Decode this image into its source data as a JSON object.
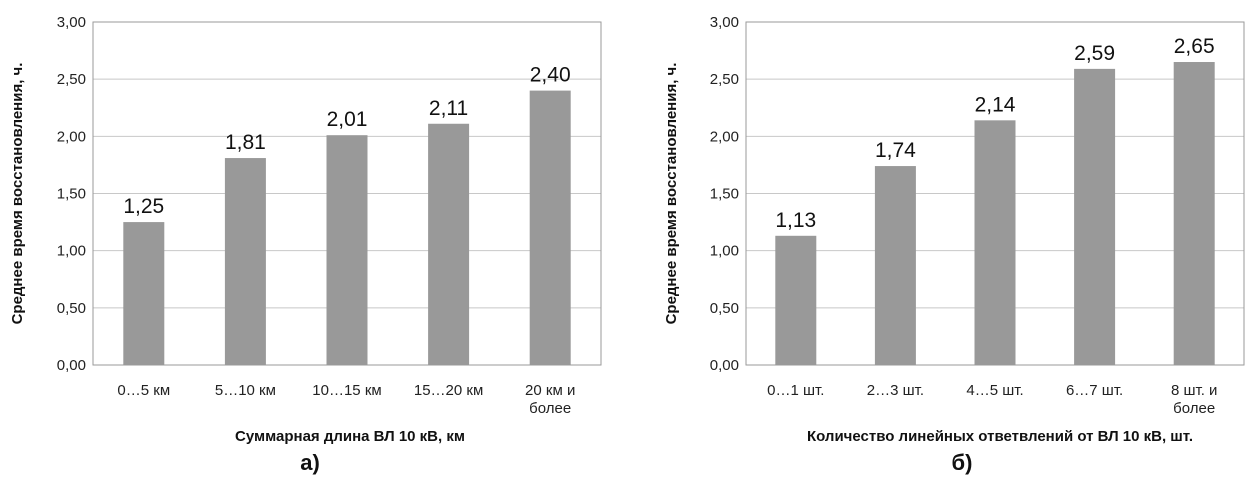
{
  "chart_data": [
    {
      "type": "bar",
      "panel_label": "а)",
      "categories": [
        [
          "0…5 км"
        ],
        [
          "5…10 км"
        ],
        [
          "10…15 км"
        ],
        [
          "15…20 км"
        ],
        [
          "20 км и",
          "более"
        ]
      ],
      "values": [
        1.25,
        1.81,
        2.01,
        2.11,
        2.4
      ],
      "value_labels": [
        "1,25",
        "1,81",
        "2,01",
        "2,11",
        "2,40"
      ],
      "y_ticks": [
        "0,00",
        "0,50",
        "1,00",
        "1,50",
        "2,00",
        "2,50",
        "3,00"
      ],
      "ylim": [
        0,
        3
      ],
      "xlabel": "Суммарная длина ВЛ 10 кВ, км",
      "ylabel": "Среднее время восстановления, ч.",
      "bar_color": "#999999",
      "grid": true
    },
    {
      "type": "bar",
      "panel_label": "б)",
      "categories": [
        [
          "0…1 шт."
        ],
        [
          "2…3 шт."
        ],
        [
          "4…5 шт."
        ],
        [
          "6…7 шт."
        ],
        [
          "8 шт. и",
          "более"
        ]
      ],
      "values": [
        1.13,
        1.74,
        2.14,
        2.59,
        2.65
      ],
      "value_labels": [
        "1,13",
        "1,74",
        "2,14",
        "2,59",
        "2,65"
      ],
      "y_ticks": [
        "0,00",
        "0,50",
        "1,00",
        "1,50",
        "2,00",
        "2,50",
        "3,00"
      ],
      "ylim": [
        0,
        3
      ],
      "xlabel": "Количество линейных ответвлений от ВЛ 10 кВ, шт.",
      "ylabel": "Среднее время восстановления, ч.",
      "bar_color": "#999999",
      "grid": true
    }
  ]
}
